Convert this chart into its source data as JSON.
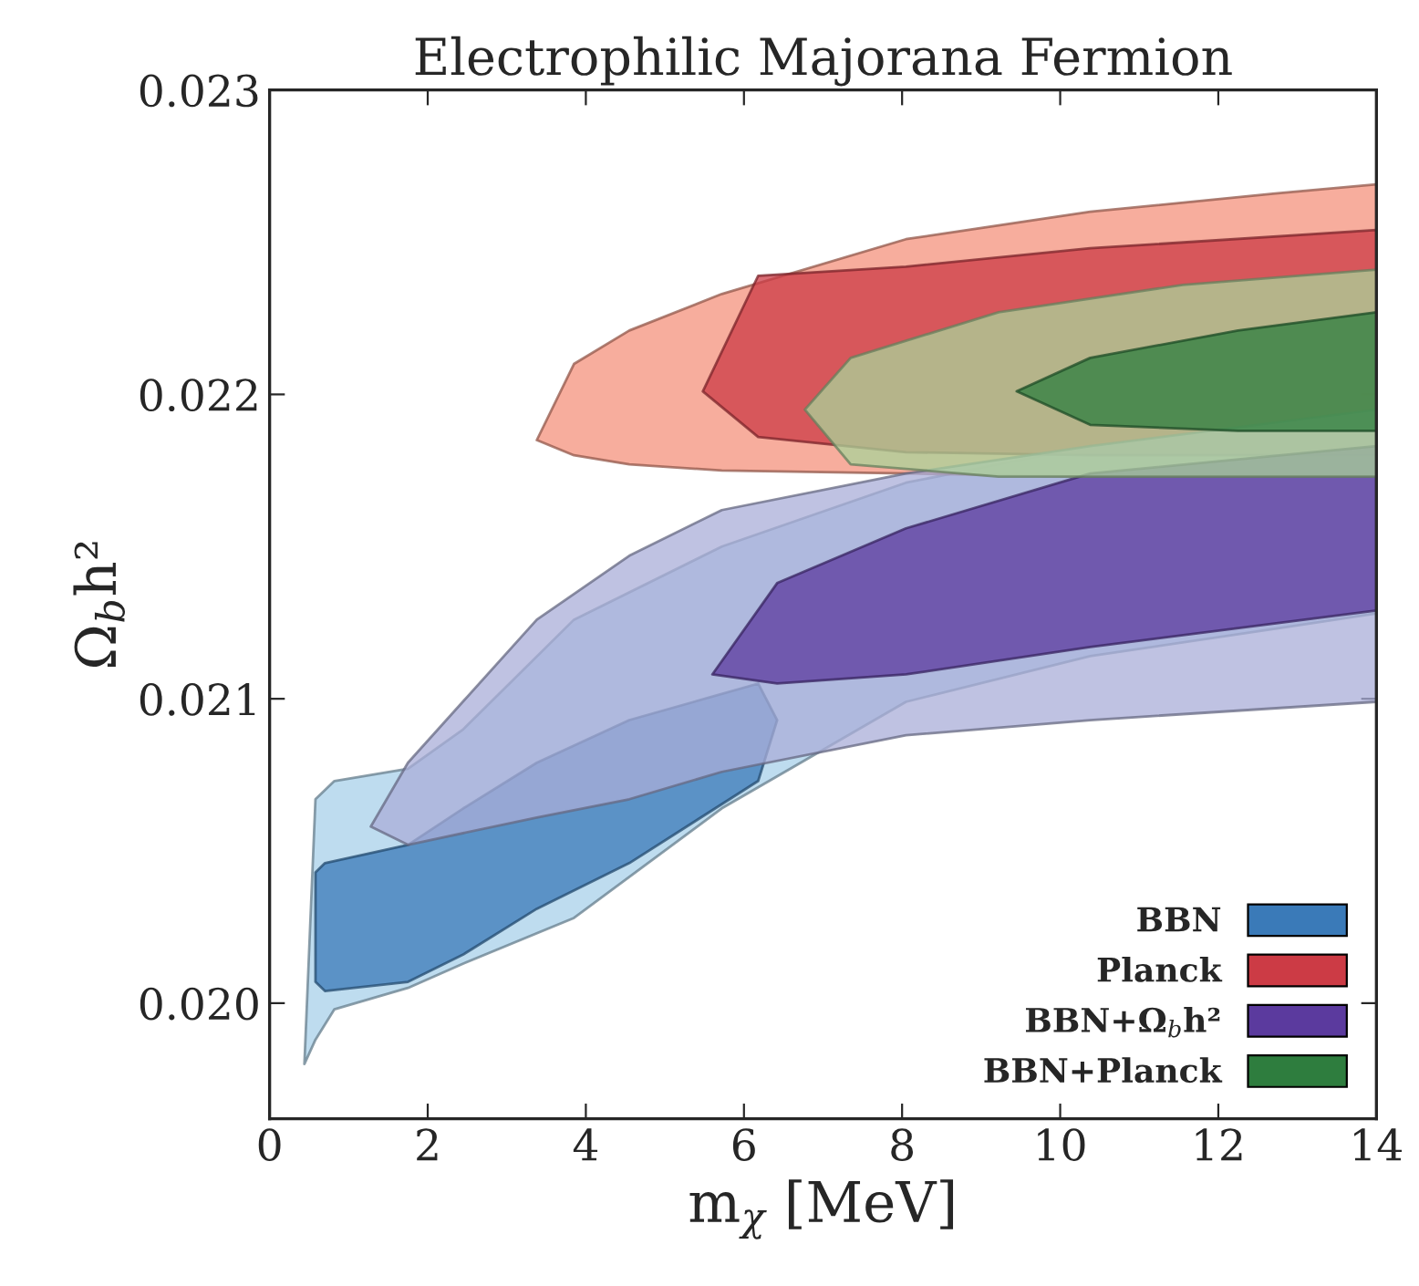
{
  "chart_data": {
    "type": "line",
    "title": "Electrophilic Majorana Fermion",
    "xlabel": "m$_{χ}$ [MeV]",
    "ylabel": "Ω$_{b}$h²",
    "xlim": [
      0,
      14
    ],
    "xticks": [
      0,
      2,
      4,
      6,
      8,
      10,
      12,
      14
    ],
    "ylim": [
      0.01962,
      0.023
    ],
    "yticks": [
      {
        "value": 0.02,
        "label": "0.020"
      },
      {
        "value": 0.021,
        "label": "0.021"
      },
      {
        "value": 0.022,
        "label": "0.022"
      },
      {
        "value": 0.023,
        "label": "0.023"
      }
    ],
    "legend": "bottom right",
    "grid": false,
    "series": [
      {
        "color": "#a8d0ea",
        "x": [
          0.44,
          0.58,
          0.82,
          1.75,
          2.45,
          3.85,
          5.72,
          8.05,
          10.38,
          12.72,
          14
        ],
        "values": [
          null,
          null,
          null,
          null,
          null,
          null,
          null,
          null,
          null,
          null,
          null
        ],
        "upper": [
          0.0198,
          0.02067,
          0.02073,
          0.02077,
          0.0209,
          0.02126,
          0.0215,
          0.02171,
          0.02183,
          0.0219,
          0.02192
        ],
        "lower": [
          0.0198,
          0.01988,
          0.01998,
          0.02005,
          0.02013,
          0.02028,
          0.02064,
          0.02099,
          0.02114,
          0.02123,
          0.02128
        ]
      },
      {
        "name": "BBN",
        "color": "#3a7ab8",
        "x": [
          0.58,
          0.7,
          1.75,
          2.45,
          3.38,
          4.55,
          6.18,
          6.42
        ],
        "values": [
          null,
          null,
          null,
          null,
          null,
          null,
          null,
          null
        ],
        "upper": [
          0.02043,
          0.02046,
          0.02052,
          0.02064,
          0.02079,
          0.02093,
          0.02105,
          0.02093
        ],
        "lower": [
          0.02007,
          0.02004,
          0.02007,
          0.02016,
          0.02031,
          0.02046,
          0.02073,
          0.02093
        ]
      },
      {
        "color": "#f4917c",
        "x": [
          3.38,
          3.85,
          4.55,
          5.72,
          8.05,
          10.38,
          12.72,
          14
        ],
        "values": [
          null,
          null,
          null,
          null,
          null,
          null,
          null,
          null
        ],
        "upper": [
          0.02185,
          0.0221,
          0.02221,
          0.02233,
          0.02251,
          0.0226,
          0.02266,
          0.02269
        ],
        "lower": [
          0.02185,
          0.0218,
          0.02177,
          0.02175,
          0.02174,
          0.02173,
          0.02173,
          0.02173
        ]
      },
      {
        "name": "Planck",
        "color": "#cc3b45",
        "x": [
          5.48,
          6.18,
          8.05,
          10.38,
          14
        ],
        "values": [
          null,
          null,
          null,
          null,
          null
        ],
        "upper": [
          0.02201,
          0.02239,
          0.02242,
          0.02248,
          0.02254
        ],
        "lower": [
          0.02201,
          0.02186,
          0.02181,
          0.0218,
          0.0218
        ]
      },
      {
        "color": "#a9aed8",
        "x": [
          1.28,
          1.75,
          3.38,
          4.55,
          5.72,
          8.05,
          10.38,
          14
        ],
        "values": [
          null,
          null,
          null,
          null,
          null,
          null,
          null,
          null
        ],
        "upper": [
          0.02058,
          0.02079,
          0.02126,
          0.02147,
          0.02162,
          0.02174,
          0.02183,
          0.02195
        ],
        "lower": [
          0.02058,
          0.02052,
          0.02061,
          0.02067,
          0.02076,
          0.02088,
          0.02093,
          0.02099
        ]
      },
      {
        "name": "BBN+Ω$_{b}$h²",
        "color": "#5b3a9e",
        "x": [
          5.6,
          6.42,
          8.05,
          10.38,
          14
        ],
        "values": [
          null,
          null,
          null,
          null,
          null
        ],
        "upper": [
          0.02108,
          0.02138,
          0.02156,
          0.02174,
          0.02183
        ],
        "lower": [
          0.02108,
          0.02105,
          0.02108,
          0.02117,
          0.02129
        ]
      },
      {
        "color": "#a9d39a",
        "x": [
          6.77,
          7.35,
          9.22,
          11.55,
          14
        ],
        "values": [
          null,
          null,
          null,
          null,
          null
        ],
        "upper": [
          0.02195,
          0.02212,
          0.02227,
          0.02236,
          0.02241
        ],
        "lower": [
          0.02195,
          0.02177,
          0.02173,
          0.02173,
          0.02173
        ]
      },
      {
        "name": "BBN+Planck",
        "color": "#2e7d3e",
        "x": [
          9.45,
          10.38,
          12.25,
          14
        ],
        "values": [
          null,
          null,
          null,
          null
        ],
        "upper": [
          0.02201,
          0.02212,
          0.02221,
          0.02227
        ],
        "lower": [
          0.02201,
          0.0219,
          0.02188,
          0.02188
        ]
      }
    ]
  }
}
